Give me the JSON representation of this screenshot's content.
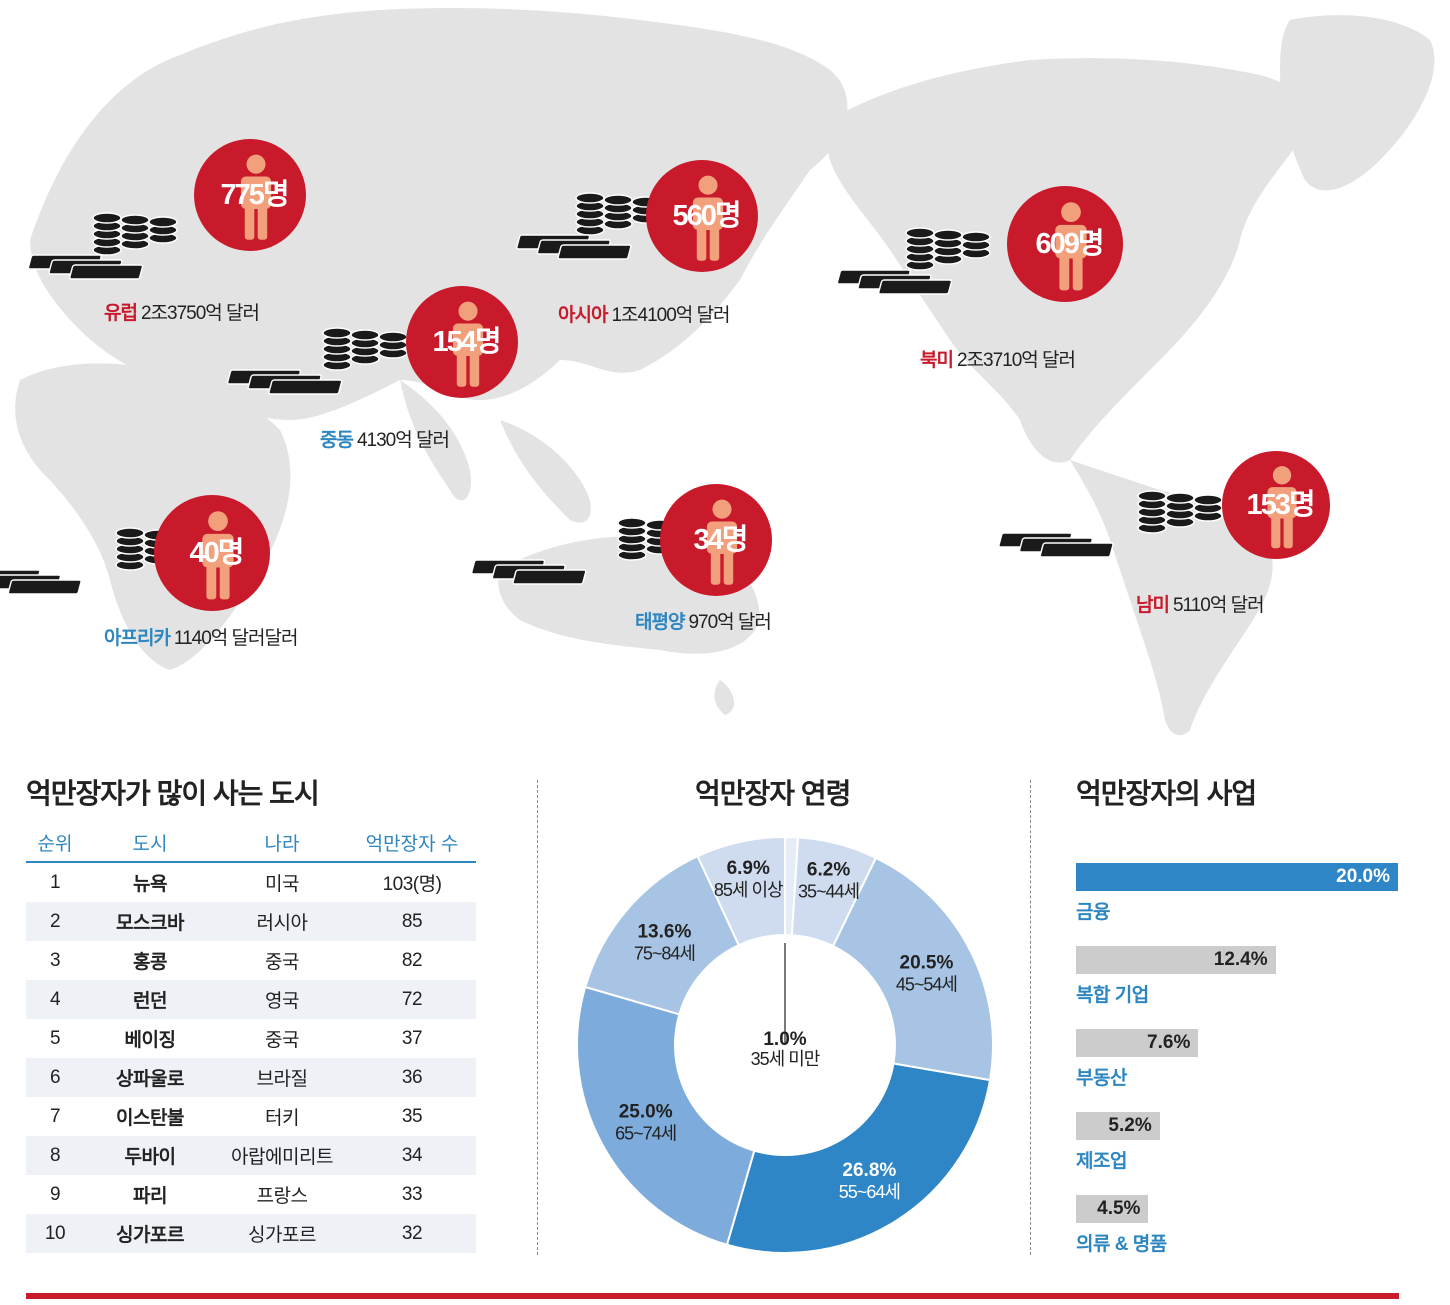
{
  "map": {
    "regions": [
      {
        "id": "europe",
        "name": "유럽",
        "amount": "2조3750억 달러",
        "count": "775명",
        "name_color": "red"
      },
      {
        "id": "asia",
        "name": "아시아",
        "amount": "1조4100억 달러",
        "count": "560명",
        "name_color": "red"
      },
      {
        "id": "north_america",
        "name": "북미",
        "amount": "2조3710억 달러",
        "count": "609명",
        "name_color": "red"
      },
      {
        "id": "middle_east",
        "name": "중동",
        "amount": "4130억 달러",
        "count": "154명",
        "name_color": "blue"
      },
      {
        "id": "africa",
        "name": "아프리카",
        "amount": "1140억 달러달러",
        "count": "40명",
        "name_color": "blue"
      },
      {
        "id": "pacific",
        "name": "태평양",
        "amount": "970억 달러",
        "count": "34명",
        "name_color": "blue"
      },
      {
        "id": "south_america",
        "name": "남미",
        "amount": "5110억 달러",
        "count": "153명",
        "name_color": "red"
      }
    ],
    "colors": {
      "badge": "#c81a2b",
      "person": "#f2a07c",
      "land": "#e3e3e3",
      "money": "#1a1a1a"
    }
  },
  "cities": {
    "title": "억만장자가 많이 사는 도시",
    "headers": [
      "순위",
      "도시",
      "나라",
      "억만장자 수"
    ],
    "rows": [
      [
        "1",
        "뉴욕",
        "미국",
        "103(명)"
      ],
      [
        "2",
        "모스크바",
        "러시아",
        "85"
      ],
      [
        "3",
        "홍콩",
        "중국",
        "82"
      ],
      [
        "4",
        "런던",
        "영국",
        "72"
      ],
      [
        "5",
        "베이징",
        "중국",
        "37"
      ],
      [
        "6",
        "상파울로",
        "브라질",
        "36"
      ],
      [
        "7",
        "이스탄불",
        "터키",
        "35"
      ],
      [
        "8",
        "두바이",
        "아랍에미리트",
        "34"
      ],
      [
        "9",
        "파리",
        "프랑스",
        "33"
      ],
      [
        "10",
        "싱가포르",
        "싱가포르",
        "32"
      ]
    ]
  },
  "age": {
    "title": "억만장자 연령"
  },
  "industry": {
    "title": "억만장자의 사업"
  },
  "chart_data": [
    {
      "type": "pie",
      "title": "억만장자 연령",
      "slices": [
        {
          "label": "35세 미만",
          "pct": "1.0%",
          "value": 1.0,
          "color": "#e6ecf6"
        },
        {
          "label": "35~44세",
          "pct": "6.2%",
          "value": 6.2,
          "color": "#cfdcef"
        },
        {
          "label": "45~54세",
          "pct": "20.5%",
          "value": 20.5,
          "color": "#a8c4e4"
        },
        {
          "label": "55~64세",
          "pct": "26.8%",
          "value": 26.8,
          "color": "#2e86c7"
        },
        {
          "label": "65~74세",
          "pct": "25.0%",
          "value": 25.0,
          "color": "#7dabdb"
        },
        {
          "label": "75~84세",
          "pct": "13.6%",
          "value": 13.6,
          "color": "#a8c4e4"
        },
        {
          "label": "85세 이상",
          "pct": "6.9%",
          "value": 6.9,
          "color": "#cfdcef"
        }
      ]
    },
    {
      "type": "bar",
      "title": "억만장자의 사업",
      "categories": [
        "금융",
        "복합 기업",
        "부동산",
        "제조업",
        "의류 & 명품"
      ],
      "values": [
        20.0,
        12.4,
        7.6,
        5.2,
        4.5
      ],
      "value_labels": [
        "20.0%",
        "12.4%",
        "7.6%",
        "5.2%",
        "4.5%"
      ],
      "colors": [
        "#2e86c7",
        "#cccccc",
        "#cccccc",
        "#cccccc",
        "#cccccc"
      ],
      "xlim": [
        0,
        20.0
      ]
    }
  ]
}
